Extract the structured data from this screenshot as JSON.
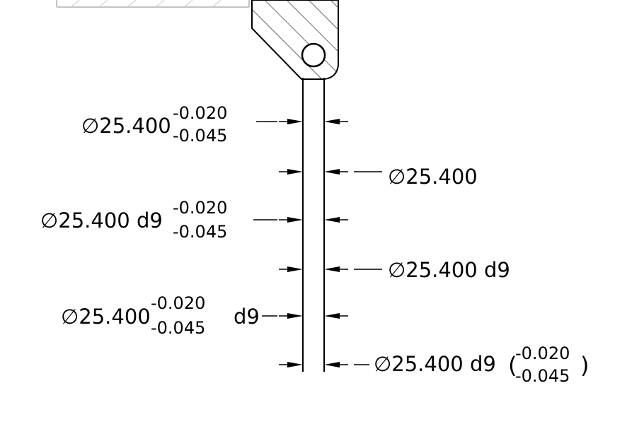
{
  "colors": {
    "ink": "#000000",
    "paper": "#ffffff",
    "frame_edge": "#b0b0b0"
  },
  "diameter_symbol": "∅",
  "dimensions": [
    {
      "id": "dim1",
      "side": "left",
      "nominal": "25.400",
      "upper": "-0.020",
      "lower": "-0.045"
    },
    {
      "id": "dim2",
      "side": "right",
      "nominal": "25.400"
    },
    {
      "id": "dim3",
      "side": "left",
      "nominal": "25.400 d9",
      "upper": "-0.020",
      "lower": "-0.045"
    },
    {
      "id": "dim4",
      "side": "right",
      "nominal": "25.400 d9"
    },
    {
      "id": "dim5",
      "side": "left",
      "nominal": "25.400",
      "upper": "-0.020",
      "lower": "-0.045",
      "suffix": "d9"
    },
    {
      "id": "dim6",
      "side": "right",
      "nominal": "25.400 d9",
      "upper": "-0.020",
      "lower": "-0.045",
      "paren_open": "(",
      "paren_close": ")"
    }
  ]
}
